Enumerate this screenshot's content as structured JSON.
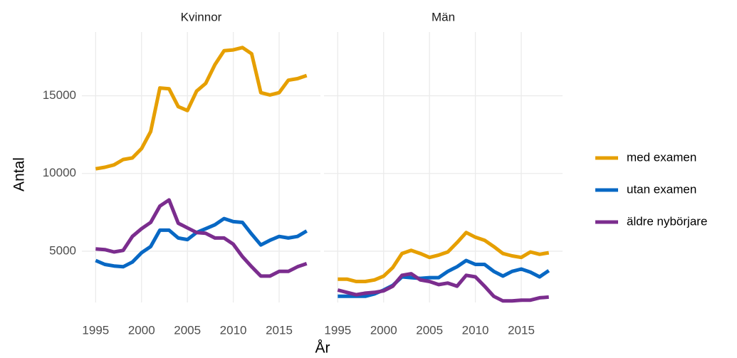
{
  "chart_data": [
    {
      "type": "line",
      "title": "Kvinnor",
      "xlabel": "År",
      "ylabel": "Antal",
      "x": [
        1995,
        1996,
        1997,
        1998,
        1999,
        2000,
        2001,
        2002,
        2003,
        2004,
        2005,
        2006,
        2007,
        2008,
        2009,
        2010,
        2011,
        2012,
        2013,
        2014,
        2015,
        2016,
        2017,
        2018
      ],
      "xlim": [
        1993.5,
        2019.5
      ],
      "xticks": [
        1995,
        2000,
        2005,
        2010,
        2015
      ],
      "ylim": [
        1700,
        19100
      ],
      "yticks": [
        5000,
        10000,
        15000
      ],
      "grid": true,
      "legend": "right",
      "series": [
        {
          "name": "med examen",
          "color": "#E69F00",
          "values": [
            10300,
            10400,
            10550,
            10900,
            11000,
            11600,
            12700,
            15500,
            15450,
            14300,
            14050,
            15300,
            15800,
            17000,
            17900,
            17950,
            18100,
            17700,
            15200,
            15050,
            15200,
            16000,
            16100,
            16300
          ]
        },
        {
          "name": "utan examen",
          "color": "#0868C4",
          "values": [
            4400,
            4150,
            4050,
            4000,
            4300,
            4900,
            5300,
            6350,
            6350,
            5850,
            5750,
            6200,
            6450,
            6700,
            7100,
            6900,
            6850,
            6100,
            5400,
            5700,
            5950,
            5850,
            5950,
            6300
          ]
        },
        {
          "name": "äldre nybörjare",
          "color": "#7B2D8E",
          "values": [
            5150,
            5100,
            4950,
            5050,
            5950,
            6450,
            6850,
            7900,
            8300,
            6800,
            6500,
            6200,
            6150,
            5850,
            5850,
            5450,
            4650,
            4000,
            3400,
            3400,
            3700,
            3700,
            4000,
            4200
          ]
        }
      ]
    },
    {
      "type": "line",
      "title": "Män",
      "x": [
        1995,
        1996,
        1997,
        1998,
        1999,
        2000,
        2001,
        2002,
        2003,
        2004,
        2005,
        2006,
        2007,
        2008,
        2009,
        2010,
        2011,
        2012,
        2013,
        2014,
        2015,
        2016,
        2017,
        2018
      ],
      "xlim": [
        1993.5,
        2019.5
      ],
      "xticks": [
        1995,
        2000,
        2005,
        2010,
        2015
      ],
      "ylim": [
        1700,
        19100
      ],
      "yticks": [
        5000,
        10000,
        15000
      ],
      "grid": true,
      "series": [
        {
          "color": "#E69F00",
          "values": [
            3200,
            3200,
            3050,
            3050,
            3150,
            3400,
            3950,
            4850,
            5050,
            4850,
            4600,
            4750,
            4950,
            5550,
            6200,
            5900,
            5700,
            5300,
            4850,
            4700,
            4600,
            4950,
            4800,
            4900
          ]
        },
        {
          "color": "#0868C4",
          "values": [
            2100,
            2100,
            2100,
            2100,
            2250,
            2500,
            2800,
            3350,
            3300,
            3250,
            3300,
            3300,
            3700,
            4000,
            4400,
            4150,
            4150,
            3700,
            3400,
            3700,
            3850,
            3650,
            3350,
            3750
          ]
        },
        {
          "color": "#7B2D8E",
          "values": [
            2500,
            2350,
            2200,
            2300,
            2350,
            2450,
            2750,
            3450,
            3550,
            3150,
            3050,
            2850,
            2950,
            2750,
            3450,
            3350,
            2750,
            2100,
            1800,
            1800,
            1850,
            1850,
            2000,
            2050
          ]
        }
      ]
    }
  ]
}
